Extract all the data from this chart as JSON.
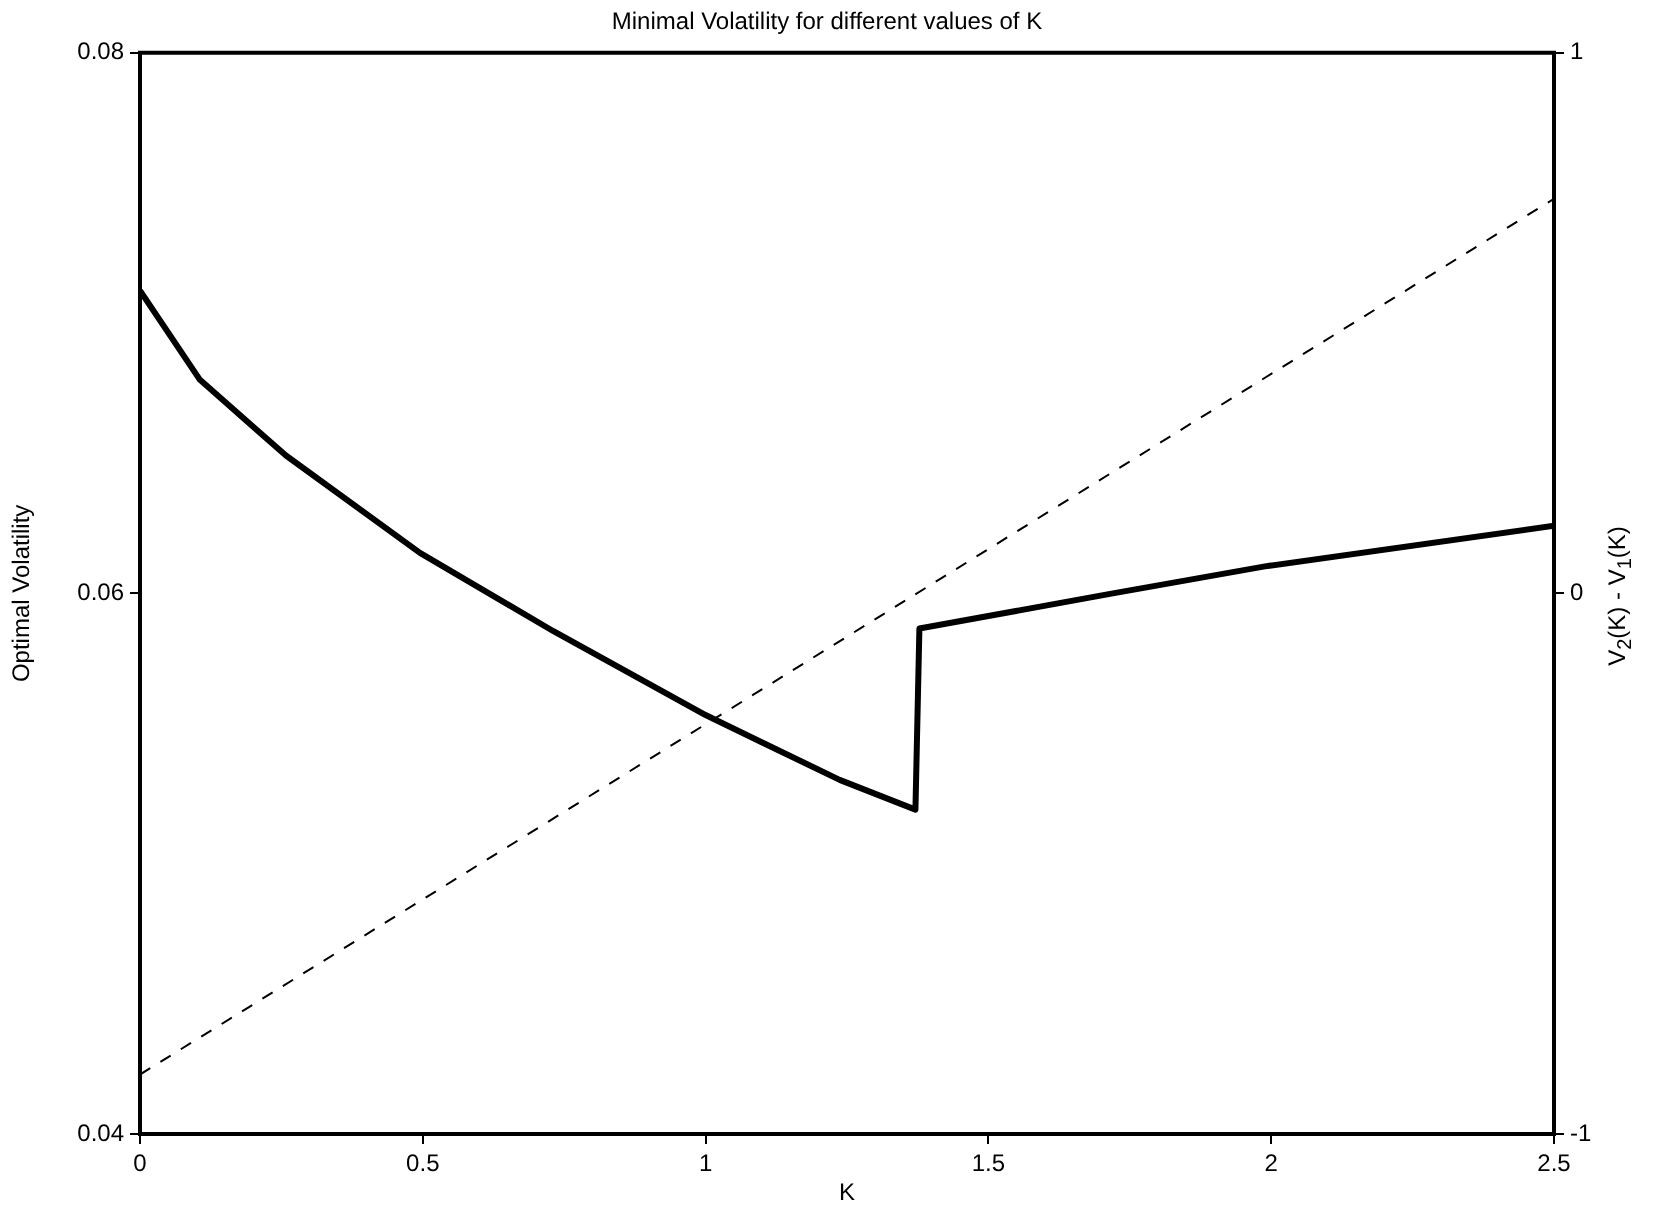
{
  "chart_data": {
    "type": "line",
    "title": "Minimal Volatility for different values of K",
    "xlabel": "K",
    "ylabel": "Optimal Volatility",
    "y2label": "V$_{2}$(K) - V$_{1}$(K)",
    "xlim": [
      0,
      2.5
    ],
    "xticks": [
      0,
      0.5,
      1,
      1.5,
      2,
      2.5
    ],
    "ylim": [
      0.04,
      0.08
    ],
    "yticks": [
      0.04,
      0.06,
      0.08
    ],
    "y2lim": [
      -1,
      1
    ],
    "y2ticks": [
      -1,
      0,
      1
    ],
    "legend": false,
    "marker": "none",
    "series": [
      {
        "color": "#000000",
        "line_style": "solid",
        "x": [
          0,
          0.106,
          0.258,
          0.495,
          0.731,
          1.0,
          1.237,
          1.371,
          1.378,
          1.72,
          1.989,
          2.5
        ],
        "values": [
          0.0712,
          0.0679,
          0.0651,
          0.0615,
          0.0586,
          0.0555,
          0.0531,
          0.052,
          0.0587,
          0.06,
          0.061,
          0.0625
        ]
      },
      {
        "color": "#000000",
        "line_style": "dashed",
        "axis": "y2",
        "x": [
          0,
          2.5
        ],
        "values": [
          -0.89,
          0.73
        ]
      }
    ]
  }
}
